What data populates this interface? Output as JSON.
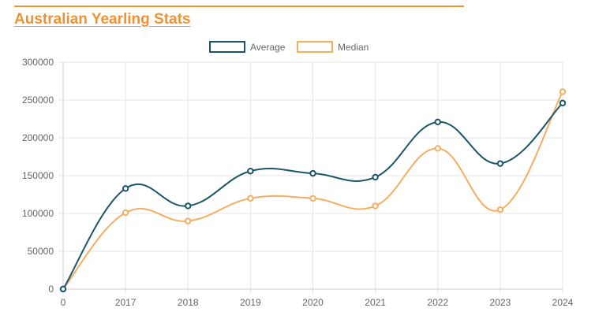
{
  "page": {
    "title": "Australian Yearling Stats",
    "colors": {
      "accent": "#ef9234",
      "average": "#1b5568",
      "median": "#f5ae5f",
      "grid": "#e6e6e6",
      "axis_text": "#666666"
    }
  },
  "chart_data": {
    "type": "line",
    "title": "",
    "xlabel": "",
    "ylabel": "",
    "categories": [
      "0",
      "2017",
      "2018",
      "2019",
      "2020",
      "2021",
      "2022",
      "2023",
      "2024"
    ],
    "ylim": [
      0,
      300000
    ],
    "yticks": [
      0,
      50000,
      100000,
      150000,
      200000,
      250000,
      300000
    ],
    "grid": true,
    "legend_position": "top",
    "series": [
      {
        "name": "Average",
        "color": "#1b5568",
        "values": [
          0,
          133000,
          110000,
          156000,
          153000,
          148000,
          221000,
          166000,
          246000
        ]
      },
      {
        "name": "Median",
        "color": "#f5ae5f",
        "values": [
          0,
          101000,
          90000,
          120000,
          120000,
          110000,
          186000,
          105000,
          261000
        ]
      }
    ]
  }
}
